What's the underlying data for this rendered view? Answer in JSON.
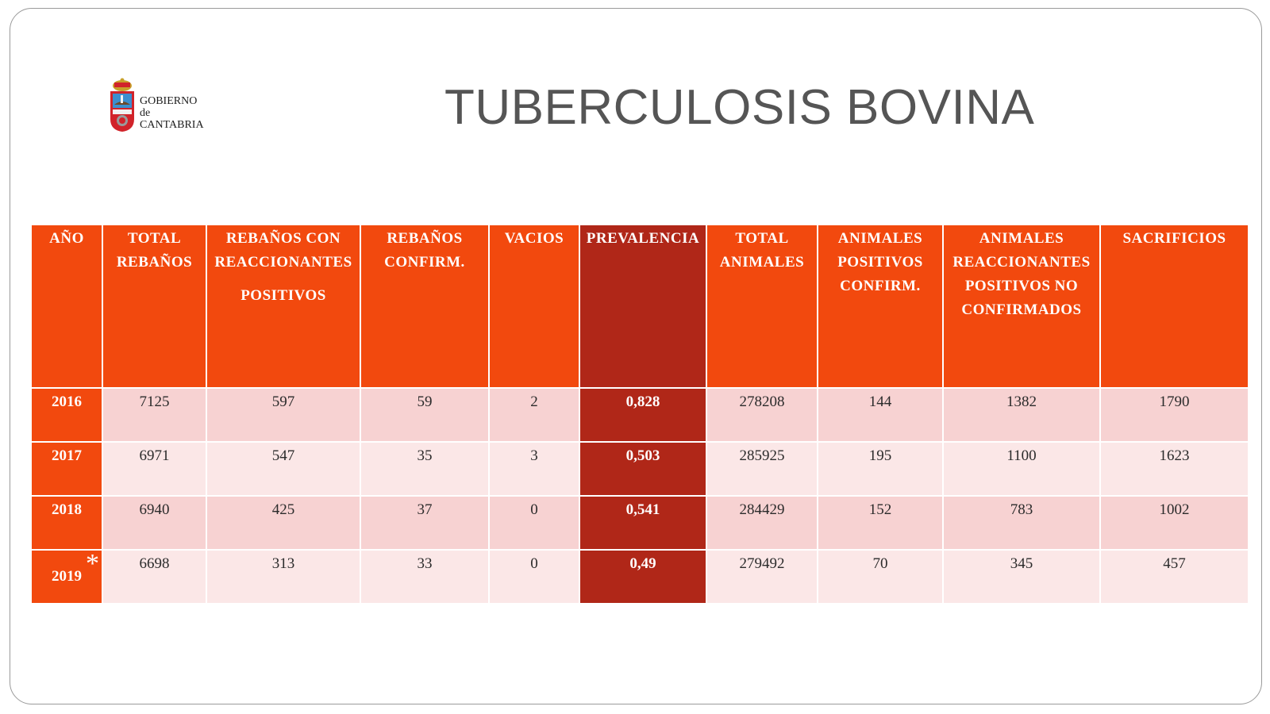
{
  "logo": {
    "line1": "GOBIERNO",
    "line2": "de",
    "line3": "CANTABRIA"
  },
  "title": "TUBERCULOSIS BOVINA",
  "colors": {
    "header_orange": "#f2490e",
    "prevalence_red": "#b02718",
    "row_light": "#f7d2d2",
    "row_lighter": "#fbe7e7"
  },
  "table": {
    "headers": [
      [
        "AÑO"
      ],
      [
        "TOTAL",
        "REBAÑOS"
      ],
      [
        "REBAÑOS  CON",
        "REACCIONANTES",
        "",
        "POSITIVOS"
      ],
      [
        "REBAÑOS",
        "CONFIRM."
      ],
      [
        "VACIOS"
      ],
      [
        "PREVALENCIA"
      ],
      [
        "TOTAL",
        "ANIMALES"
      ],
      [
        "ANIMALES",
        "POSITIVOS",
        "CONFIRM."
      ],
      [
        "ANIMALES",
        "REACCIONANTES",
        "POSITIVOS  NO",
        "CONFIRMADOS"
      ],
      [
        "SACRIFICIOS"
      ]
    ],
    "rows": [
      [
        "2016",
        "7125",
        "597",
        "59",
        "2",
        "0,828",
        "278208",
        "144",
        "1382",
        "1790"
      ],
      [
        "2017",
        "6971",
        "547",
        "35",
        "3",
        "0,503",
        "285925",
        "195",
        "1100",
        "1623"
      ],
      [
        "2018",
        "6940",
        "425",
        "37",
        "0",
        "0,541",
        "284429",
        "152",
        "783",
        "1002"
      ],
      [
        "2019",
        "6698",
        "313",
        "33",
        "0",
        "0,49",
        "279492",
        "70",
        "345",
        "457"
      ]
    ],
    "last_row_marker": "*"
  }
}
